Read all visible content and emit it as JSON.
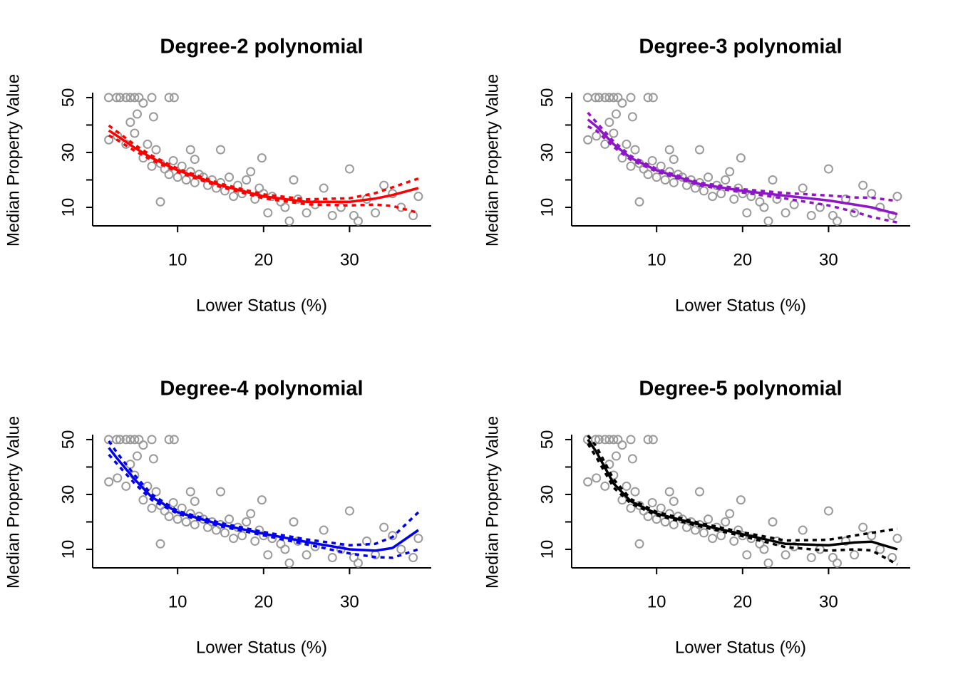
{
  "chart_data": [
    {
      "type": "scatter",
      "title": "Degree-2 polynomial",
      "xlabel": "Lower Status (%)",
      "ylabel": "Median Property Value",
      "xlim": [
        0.12,
        39.5
      ],
      "ylim": [
        3.25,
        51.8
      ],
      "xticks": [
        10,
        20,
        30
      ],
      "yticks": [
        10,
        30,
        50
      ],
      "yminorticks": [
        20,
        40
      ],
      "series": [
        {
          "marker": "circle",
          "color": "#999999",
          "x": [
            1.98,
            2.9,
            3.3,
            4.5,
            5,
            5.5,
            9,
            9.6,
            7,
            4,
            2,
            3,
            4,
            4.5,
            5,
            5.3,
            6,
            6.5,
            7,
            7.5,
            8,
            8.5,
            9,
            9.5,
            10,
            10.5,
            11,
            11.5,
            12,
            12.5,
            13,
            13.5,
            14,
            14.5,
            15,
            15.5,
            16,
            16.5,
            17,
            17.5,
            18,
            18.5,
            19,
            19.5,
            20,
            20.5,
            21,
            22,
            22.5,
            23,
            23.5,
            24,
            25,
            26,
            27,
            28,
            29,
            30,
            30.5,
            31,
            32,
            33,
            34,
            35,
            36,
            37.4,
            38,
            8,
            12,
            19.8,
            15,
            11.5,
            6,
            7.2
          ],
          "values": [
            50,
            50,
            50,
            50,
            50,
            50,
            50,
            50,
            50,
            50,
            34.6,
            36,
            33,
            41,
            37,
            44,
            28,
            33,
            25,
            31,
            26,
            24,
            22,
            27,
            21,
            25,
            20,
            23,
            19,
            22,
            21,
            18,
            20,
            17,
            19,
            16,
            21,
            14,
            18,
            15,
            20,
            23,
            13,
            17,
            15,
            8,
            14,
            12,
            10,
            5,
            20,
            13,
            8,
            11,
            17,
            7,
            10,
            24,
            7,
            5,
            13,
            8,
            18,
            15,
            10,
            7,
            14,
            12,
            27.5,
            28,
            31,
            31,
            48,
            43
          ]
        },
        {
          "line": "solid",
          "color": "#ff0000",
          "x": [
            2,
            3,
            5,
            7,
            10,
            15,
            20,
            25,
            30,
            33,
            35,
            38
          ],
          "values": [
            38,
            36,
            31.7,
            28,
            23.5,
            18,
            14,
            12,
            12,
            13.2,
            14.5,
            17
          ]
        },
        {
          "line": "dashed",
          "color": "#ff0000",
          "x": [
            2,
            3,
            5,
            7,
            10,
            15,
            20,
            25,
            30,
            33,
            35,
            38
          ],
          "values": [
            39.8,
            37.5,
            32.8,
            28.8,
            24.1,
            18.6,
            14.7,
            12.9,
            13.3,
            15.2,
            17.3,
            20.5
          ]
        },
        {
          "line": "dashed",
          "color": "#ff0000",
          "x": [
            2,
            3,
            5,
            7,
            10,
            15,
            20,
            25,
            30,
            33,
            35,
            38
          ],
          "values": [
            36.2,
            34.5,
            30.6,
            27.2,
            22.9,
            17.4,
            13.3,
            11.1,
            10.7,
            11,
            10.5,
            8
          ]
        }
      ]
    },
    {
      "type": "scatter",
      "title": "Degree-3 polynomial",
      "xlabel": "Lower Status (%)",
      "ylabel": "Median Property Value",
      "xlim": [
        0.12,
        39.5
      ],
      "ylim": [
        3.25,
        51.8
      ],
      "xticks": [
        10,
        20,
        30
      ],
      "yticks": [
        10,
        30,
        50
      ],
      "yminorticks": [
        20,
        40
      ],
      "series": [
        {
          "marker": "circle",
          "color": "#999999",
          "x": [
            1.98,
            2.9,
            3.3,
            4.5,
            5,
            5.5,
            9,
            9.6,
            7,
            4,
            2,
            3,
            4,
            4.5,
            5,
            5.3,
            6,
            6.5,
            7,
            7.5,
            8,
            8.5,
            9,
            9.5,
            10,
            10.5,
            11,
            11.5,
            12,
            12.5,
            13,
            13.5,
            14,
            14.5,
            15,
            15.5,
            16,
            16.5,
            17,
            17.5,
            18,
            18.5,
            19,
            19.5,
            20,
            20.5,
            21,
            22,
            22.5,
            23,
            23.5,
            24,
            25,
            26,
            27,
            28,
            29,
            30,
            30.5,
            31,
            32,
            33,
            34,
            35,
            36,
            37.4,
            38,
            8,
            12,
            19.8,
            15,
            11.5,
            6,
            7.2
          ],
          "values": [
            50,
            50,
            50,
            50,
            50,
            50,
            50,
            50,
            50,
            50,
            34.6,
            36,
            33,
            41,
            37,
            44,
            28,
            33,
            25,
            31,
            26,
            24,
            22,
            27,
            21,
            25,
            20,
            23,
            19,
            22,
            21,
            18,
            20,
            17,
            19,
            16,
            21,
            14,
            18,
            15,
            20,
            23,
            13,
            17,
            15,
            8,
            14,
            12,
            10,
            5,
            20,
            13,
            8,
            11,
            17,
            7,
            10,
            24,
            7,
            5,
            13,
            8,
            18,
            15,
            10,
            7,
            14,
            12,
            27.5,
            28,
            31,
            31,
            48,
            43
          ]
        },
        {
          "line": "solid",
          "color": "#8f15c8",
          "x": [
            2,
            3,
            5,
            7,
            10,
            15,
            20,
            25,
            30,
            33,
            35,
            38
          ],
          "values": [
            42,
            39.5,
            33,
            28,
            23.5,
            18.5,
            16,
            14.2,
            12.5,
            11,
            10,
            7.5
          ]
        },
        {
          "line": "dashed",
          "color": "#8f15c8",
          "x": [
            2,
            3,
            5,
            7,
            10,
            15,
            20,
            25,
            30,
            33,
            35,
            38
          ],
          "values": [
            44.5,
            41,
            34,
            28.7,
            24,
            19,
            16.6,
            15.2,
            14.3,
            13.6,
            13.5,
            12.3
          ]
        },
        {
          "line": "dashed",
          "color": "#8f15c8",
          "x": [
            2,
            3,
            5,
            7,
            10,
            15,
            20,
            25,
            30,
            33,
            35,
            38
          ],
          "values": [
            39.5,
            38,
            32,
            27.3,
            23,
            18,
            15.4,
            13.2,
            10.7,
            8.4,
            6.5,
            4.5
          ]
        }
      ]
    },
    {
      "type": "scatter",
      "title": "Degree-4 polynomial",
      "xlabel": "Lower Status (%)",
      "ylabel": "Median Property Value",
      "xlim": [
        0.12,
        39.5
      ],
      "ylim": [
        3.25,
        51.8
      ],
      "xticks": [
        10,
        20,
        30
      ],
      "yticks": [
        10,
        30,
        50
      ],
      "yminorticks": [
        20,
        40
      ],
      "series": [
        {
          "marker": "circle",
          "color": "#999999",
          "x": [
            1.98,
            2.9,
            3.3,
            4.5,
            5,
            5.5,
            9,
            9.6,
            7,
            4,
            2,
            3,
            4,
            4.5,
            5,
            5.3,
            6,
            6.5,
            7,
            7.5,
            8,
            8.5,
            9,
            9.5,
            10,
            10.5,
            11,
            11.5,
            12,
            12.5,
            13,
            13.5,
            14,
            14.5,
            15,
            15.5,
            16,
            16.5,
            17,
            17.5,
            18,
            18.5,
            19,
            19.5,
            20,
            20.5,
            21,
            22,
            22.5,
            23,
            23.5,
            24,
            25,
            26,
            27,
            28,
            29,
            30,
            30.5,
            31,
            32,
            33,
            34,
            35,
            36,
            37.4,
            38,
            8,
            12,
            19.8,
            15,
            11.5,
            6,
            7.2
          ],
          "values": [
            50,
            50,
            50,
            50,
            50,
            50,
            50,
            50,
            50,
            50,
            34.6,
            36,
            33,
            41,
            37,
            44,
            28,
            33,
            25,
            31,
            26,
            24,
            22,
            27,
            21,
            25,
            20,
            23,
            19,
            22,
            21,
            18,
            20,
            17,
            19,
            16,
            21,
            14,
            18,
            15,
            20,
            23,
            13,
            17,
            15,
            8,
            14,
            12,
            10,
            5,
            20,
            13,
            8,
            11,
            17,
            7,
            10,
            24,
            7,
            5,
            13,
            8,
            18,
            15,
            10,
            7,
            14,
            12,
            27.5,
            28,
            31,
            31,
            48,
            43
          ]
        },
        {
          "line": "solid",
          "color": "#0000ee",
          "x": [
            2,
            3,
            5,
            7,
            10,
            15,
            20,
            25,
            30,
            33,
            35,
            38
          ],
          "values": [
            47,
            43,
            35.5,
            29,
            23.5,
            19,
            15.7,
            12.7,
            10,
            9.5,
            10.5,
            17
          ]
        },
        {
          "line": "dashed",
          "color": "#0000ee",
          "x": [
            2,
            3,
            5,
            7,
            10,
            15,
            20,
            25,
            30,
            33,
            35,
            38
          ],
          "values": [
            49.5,
            45,
            37,
            30,
            24,
            19.6,
            16.3,
            13.6,
            11.5,
            12,
            14.5,
            23.5
          ]
        },
        {
          "line": "dashed",
          "color": "#0000ee",
          "x": [
            2,
            3,
            5,
            7,
            10,
            15,
            20,
            25,
            30,
            33,
            35,
            38
          ],
          "values": [
            44.5,
            41,
            34,
            28,
            23,
            18.4,
            15.1,
            11.8,
            8.5,
            7.2,
            6.9,
            10
          ]
        }
      ]
    },
    {
      "type": "scatter",
      "title": "Degree-5 polynomial",
      "xlabel": "Lower Status (%)",
      "ylabel": "Median Property Value",
      "xlim": [
        0.12,
        39.5
      ],
      "ylim": [
        3.25,
        51.8
      ],
      "xticks": [
        10,
        20,
        30
      ],
      "yticks": [
        10,
        30,
        50
      ],
      "yminorticks": [
        20,
        40
      ],
      "series": [
        {
          "marker": "circle",
          "color": "#999999",
          "x": [
            1.98,
            2.9,
            3.3,
            4.5,
            5,
            5.5,
            9,
            9.6,
            7,
            4,
            2,
            3,
            4,
            4.5,
            5,
            5.3,
            6,
            6.5,
            7,
            7.5,
            8,
            8.5,
            9,
            9.5,
            10,
            10.5,
            11,
            11.5,
            12,
            12.5,
            13,
            13.5,
            14,
            14.5,
            15,
            15.5,
            16,
            16.5,
            17,
            17.5,
            18,
            18.5,
            19,
            19.5,
            20,
            20.5,
            21,
            22,
            22.5,
            23,
            23.5,
            24,
            25,
            26,
            27,
            28,
            29,
            30,
            30.5,
            31,
            32,
            33,
            34,
            35,
            36,
            37.4,
            38,
            8,
            12,
            19.8,
            15,
            11.5,
            6,
            7.2
          ],
          "values": [
            50,
            50,
            50,
            50,
            50,
            50,
            50,
            50,
            50,
            50,
            34.6,
            36,
            33,
            41,
            37,
            44,
            28,
            33,
            25,
            31,
            26,
            24,
            22,
            27,
            21,
            25,
            20,
            23,
            19,
            22,
            21,
            18,
            20,
            17,
            19,
            16,
            21,
            14,
            18,
            15,
            20,
            23,
            13,
            17,
            15,
            8,
            14,
            12,
            10,
            5,
            20,
            13,
            8,
            11,
            17,
            7,
            10,
            24,
            7,
            5,
            13,
            8,
            18,
            15,
            10,
            7,
            14,
            12,
            27.5,
            28,
            31,
            31,
            48,
            43
          ]
        },
        {
          "line": "solid",
          "color": "#000000",
          "x": [
            2,
            3,
            5,
            7,
            10,
            15,
            20,
            25,
            30,
            33,
            35,
            38
          ],
          "values": [
            50,
            45.5,
            34,
            27.5,
            23,
            19,
            15.5,
            12,
            11.5,
            12.5,
            12.8,
            10
          ]
        },
        {
          "line": "dashed",
          "color": "#000000",
          "x": [
            2,
            3,
            5,
            7,
            10,
            15,
            20,
            25,
            30,
            33,
            35,
            38
          ],
          "values": [
            51.5,
            47.5,
            35.5,
            28.3,
            23.6,
            19.6,
            16.2,
            13.2,
            13.5,
            15,
            16,
            17.5
          ]
        },
        {
          "line": "dashed",
          "color": "#000000",
          "x": [
            2,
            3,
            5,
            7,
            10,
            15,
            20,
            25,
            30,
            33,
            35,
            38
          ],
          "values": [
            48.5,
            43.5,
            32.5,
            26.7,
            22.4,
            18.4,
            14.8,
            10.8,
            9.5,
            10,
            9.6,
            4.5
          ]
        }
      ]
    }
  ]
}
